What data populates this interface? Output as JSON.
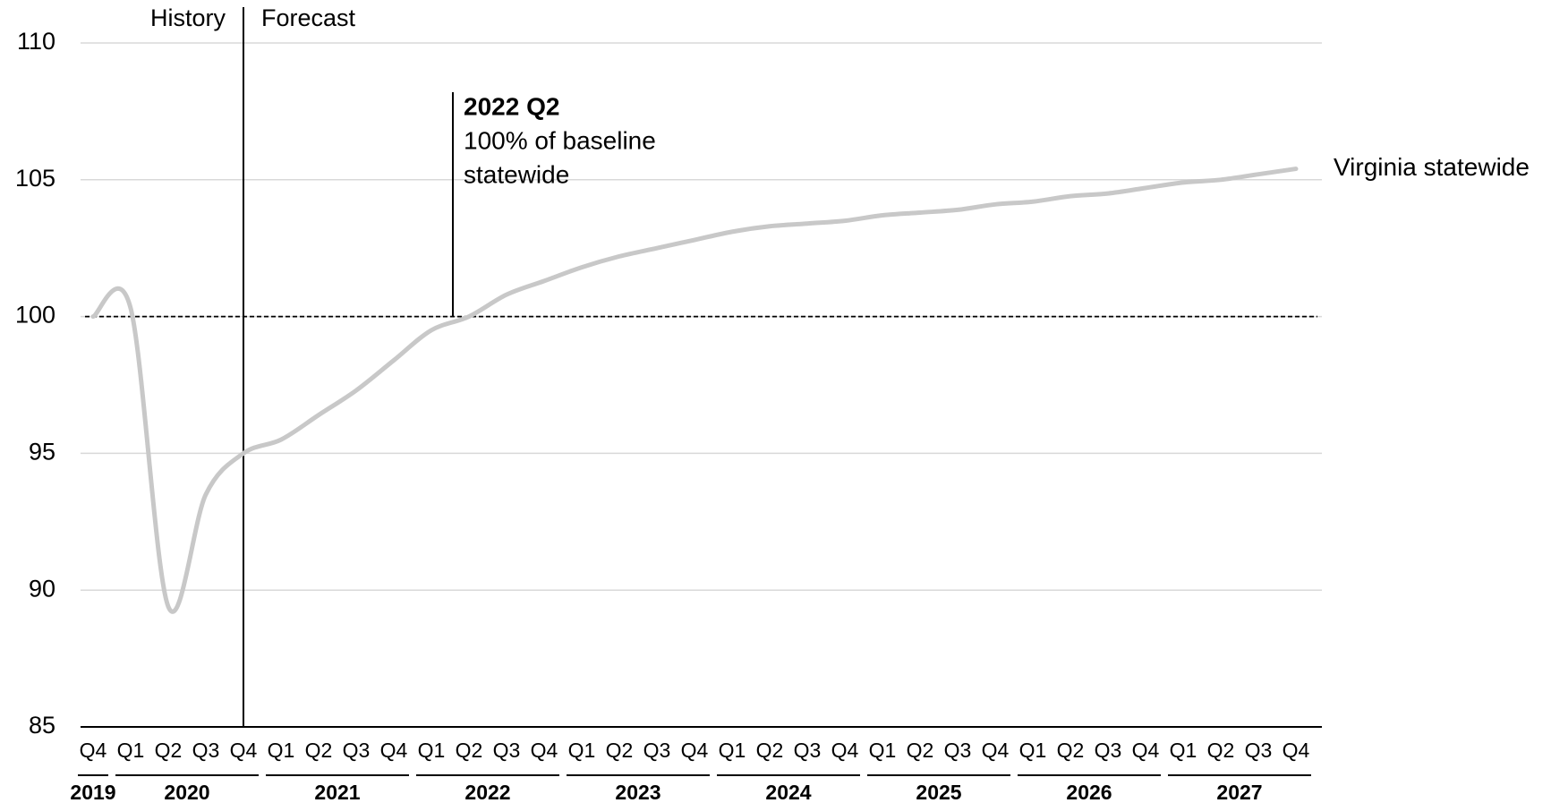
{
  "chart_data": {
    "type": "line",
    "quarters": [
      "Q4",
      "Q1",
      "Q2",
      "Q3",
      "Q4",
      "Q1",
      "Q2",
      "Q3",
      "Q4",
      "Q1",
      "Q2",
      "Q3",
      "Q4",
      "Q1",
      "Q2",
      "Q3",
      "Q4",
      "Q1",
      "Q2",
      "Q3",
      "Q4",
      "Q1",
      "Q2",
      "Q3",
      "Q4",
      "Q1",
      "Q2",
      "Q3",
      "Q4",
      "Q1",
      "Q2",
      "Q3",
      "Q4"
    ],
    "years": [
      "2019",
      "2020",
      "2021",
      "2022",
      "2023",
      "2024",
      "2025",
      "2026",
      "2027"
    ],
    "series": [
      {
        "name": "Virginia statewide",
        "color": "#c8c8c8",
        "values": [
          100,
          100.3,
          89.4,
          93.5,
          95.0,
          95.5,
          96.4,
          97.3,
          98.4,
          99.5,
          100.0,
          100.8,
          101.3,
          101.8,
          102.2,
          102.5,
          102.8,
          103.1,
          103.3,
          103.4,
          103.5,
          103.7,
          103.8,
          103.9,
          104.1,
          104.2,
          104.4,
          104.5,
          104.7,
          104.9,
          105.0,
          105.2,
          105.4
        ]
      }
    ],
    "ylim": [
      85,
      110
    ],
    "yticks": [
      85,
      90,
      95,
      100,
      105,
      110
    ],
    "grid": true,
    "reference_line": 100,
    "period_labels": [
      "History",
      "Forecast"
    ],
    "annotation": {
      "title": "2022 Q2",
      "lines": [
        "100% of baseline",
        "statewide"
      ]
    }
  }
}
